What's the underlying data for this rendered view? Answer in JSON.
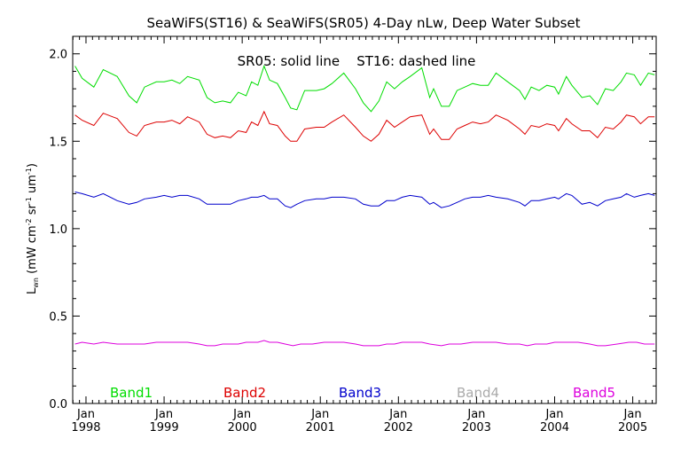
{
  "chart_data": {
    "type": "line",
    "title": "SeaWiFS(ST16) & SeaWiFS(SR05) 4-Day nLw, Deep Water Subset",
    "annotation": "SR05: solid line    ST16: dashed line",
    "ylabel": {
      "main": "L",
      "sub": "wn",
      "rest1": " (mW cm",
      "sup1": "-2",
      "rest2": " sr",
      "sup2": "-1",
      "rest3": " um",
      "sup3": "-1",
      "rest4": ")"
    },
    "ylim": [
      0.0,
      2.1
    ],
    "xlim": [
      1997.83,
      2005.3
    ],
    "y_ticks": [
      {
        "value": 0.0,
        "label": "0.0"
      },
      {
        "value": 0.5,
        "label": "0.5"
      },
      {
        "value": 1.0,
        "label": "1.0"
      },
      {
        "value": 1.5,
        "label": "1.5"
      },
      {
        "value": 2.0,
        "label": "2.0"
      }
    ],
    "x_ticks": [
      {
        "value": 1998.0,
        "month": "Jan",
        "year": "1998"
      },
      {
        "value": 1999.0,
        "month": "Jan",
        "year": "1999"
      },
      {
        "value": 2000.0,
        "month": "Jan",
        "year": "2000"
      },
      {
        "value": 2001.0,
        "month": "Jan",
        "year": "2001"
      },
      {
        "value": 2002.0,
        "month": "Jan",
        "year": "2002"
      },
      {
        "value": 2003.0,
        "month": "Jan",
        "year": "2003"
      },
      {
        "value": 2004.0,
        "month": "Jan",
        "year": "2004"
      },
      {
        "value": 2005.0,
        "month": "Jan",
        "year": "2005"
      }
    ],
    "legend": [
      {
        "name": "Band1",
        "color": "#00dd00"
      },
      {
        "name": "Band2",
        "color": "#dd0000"
      },
      {
        "name": "Band3",
        "color": "#0000cc"
      },
      {
        "name": "Band4",
        "color": "#aaaaaa"
      },
      {
        "name": "Band5",
        "color": "#dd00dd"
      }
    ],
    "legend_placement": "bottom inside plot",
    "grid": false,
    "series": [
      {
        "name": "Band1",
        "color": "#00dd00",
        "points": [
          [
            1997.86,
            1.93
          ],
          [
            1997.95,
            1.86
          ],
          [
            1998.1,
            1.81
          ],
          [
            1998.22,
            1.91
          ],
          [
            1998.4,
            1.87
          ],
          [
            1998.55,
            1.76
          ],
          [
            1998.65,
            1.72
          ],
          [
            1998.75,
            1.81
          ],
          [
            1998.9,
            1.84
          ],
          [
            1999.0,
            1.84
          ],
          [
            1999.1,
            1.85
          ],
          [
            1999.2,
            1.83
          ],
          [
            1999.3,
            1.87
          ],
          [
            1999.45,
            1.85
          ],
          [
            1999.55,
            1.75
          ],
          [
            1999.65,
            1.72
          ],
          [
            1999.75,
            1.73
          ],
          [
            1999.85,
            1.72
          ],
          [
            1999.95,
            1.78
          ],
          [
            2000.05,
            1.76
          ],
          [
            2000.12,
            1.84
          ],
          [
            2000.2,
            1.82
          ],
          [
            2000.28,
            1.93
          ],
          [
            2000.35,
            1.85
          ],
          [
            2000.45,
            1.83
          ],
          [
            2000.55,
            1.75
          ],
          [
            2000.62,
            1.69
          ],
          [
            2000.7,
            1.68
          ],
          [
            2000.8,
            1.79
          ],
          [
            2000.95,
            1.79
          ],
          [
            2001.05,
            1.8
          ],
          [
            2001.15,
            1.83
          ],
          [
            2001.3,
            1.89
          ],
          [
            2001.45,
            1.8
          ],
          [
            2001.55,
            1.72
          ],
          [
            2001.65,
            1.67
          ],
          [
            2001.75,
            1.73
          ],
          [
            2001.85,
            1.84
          ],
          [
            2001.95,
            1.8
          ],
          [
            2002.05,
            1.84
          ],
          [
            2002.15,
            1.87
          ],
          [
            2002.3,
            1.92
          ],
          [
            2002.4,
            1.75
          ],
          [
            2002.45,
            1.8
          ],
          [
            2002.55,
            1.7
          ],
          [
            2002.65,
            1.7
          ],
          [
            2002.75,
            1.79
          ],
          [
            2002.85,
            1.81
          ],
          [
            2002.95,
            1.83
          ],
          [
            2003.05,
            1.82
          ],
          [
            2003.15,
            1.82
          ],
          [
            2003.25,
            1.89
          ],
          [
            2003.4,
            1.84
          ],
          [
            2003.55,
            1.79
          ],
          [
            2003.62,
            1.74
          ],
          [
            2003.7,
            1.81
          ],
          [
            2003.8,
            1.79
          ],
          [
            2003.9,
            1.82
          ],
          [
            2004.0,
            1.81
          ],
          [
            2004.05,
            1.77
          ],
          [
            2004.15,
            1.87
          ],
          [
            2004.22,
            1.82
          ],
          [
            2004.35,
            1.75
          ],
          [
            2004.45,
            1.76
          ],
          [
            2004.55,
            1.71
          ],
          [
            2004.65,
            1.8
          ],
          [
            2004.75,
            1.79
          ],
          [
            2004.85,
            1.84
          ],
          [
            2004.92,
            1.89
          ],
          [
            2005.02,
            1.88
          ],
          [
            2005.1,
            1.82
          ],
          [
            2005.2,
            1.89
          ],
          [
            2005.28,
            1.88
          ]
        ]
      },
      {
        "name": "Band2",
        "color": "#dd0000",
        "points": [
          [
            1997.86,
            1.65
          ],
          [
            1997.95,
            1.62
          ],
          [
            1998.1,
            1.59
          ],
          [
            1998.22,
            1.66
          ],
          [
            1998.4,
            1.63
          ],
          [
            1998.55,
            1.55
          ],
          [
            1998.65,
            1.53
          ],
          [
            1998.75,
            1.59
          ],
          [
            1998.9,
            1.61
          ],
          [
            1999.0,
            1.61
          ],
          [
            1999.1,
            1.62
          ],
          [
            1999.2,
            1.6
          ],
          [
            1999.3,
            1.64
          ],
          [
            1999.45,
            1.61
          ],
          [
            1999.55,
            1.54
          ],
          [
            1999.65,
            1.52
          ],
          [
            1999.75,
            1.53
          ],
          [
            1999.85,
            1.52
          ],
          [
            1999.95,
            1.56
          ],
          [
            2000.05,
            1.55
          ],
          [
            2000.12,
            1.61
          ],
          [
            2000.2,
            1.59
          ],
          [
            2000.28,
            1.67
          ],
          [
            2000.35,
            1.6
          ],
          [
            2000.45,
            1.59
          ],
          [
            2000.55,
            1.53
          ],
          [
            2000.62,
            1.5
          ],
          [
            2000.7,
            1.5
          ],
          [
            2000.8,
            1.57
          ],
          [
            2000.95,
            1.58
          ],
          [
            2001.05,
            1.58
          ],
          [
            2001.15,
            1.61
          ],
          [
            2001.3,
            1.65
          ],
          [
            2001.45,
            1.58
          ],
          [
            2001.55,
            1.53
          ],
          [
            2001.65,
            1.5
          ],
          [
            2001.75,
            1.54
          ],
          [
            2001.85,
            1.62
          ],
          [
            2001.95,
            1.58
          ],
          [
            2002.05,
            1.61
          ],
          [
            2002.15,
            1.64
          ],
          [
            2002.3,
            1.65
          ],
          [
            2002.4,
            1.54
          ],
          [
            2002.45,
            1.57
          ],
          [
            2002.55,
            1.51
          ],
          [
            2002.65,
            1.51
          ],
          [
            2002.75,
            1.57
          ],
          [
            2002.85,
            1.59
          ],
          [
            2002.95,
            1.61
          ],
          [
            2003.05,
            1.6
          ],
          [
            2003.15,
            1.61
          ],
          [
            2003.25,
            1.65
          ],
          [
            2003.4,
            1.62
          ],
          [
            2003.55,
            1.57
          ],
          [
            2003.62,
            1.54
          ],
          [
            2003.7,
            1.59
          ],
          [
            2003.8,
            1.58
          ],
          [
            2003.9,
            1.6
          ],
          [
            2004.0,
            1.59
          ],
          [
            2004.05,
            1.56
          ],
          [
            2004.15,
            1.63
          ],
          [
            2004.22,
            1.6
          ],
          [
            2004.35,
            1.56
          ],
          [
            2004.45,
            1.56
          ],
          [
            2004.55,
            1.52
          ],
          [
            2004.65,
            1.58
          ],
          [
            2004.75,
            1.57
          ],
          [
            2004.85,
            1.61
          ],
          [
            2004.92,
            1.65
          ],
          [
            2005.02,
            1.64
          ],
          [
            2005.1,
            1.6
          ],
          [
            2005.2,
            1.64
          ],
          [
            2005.28,
            1.64
          ]
        ]
      },
      {
        "name": "Band3",
        "color": "#0000cc",
        "points": [
          [
            1997.86,
            1.21
          ],
          [
            1997.95,
            1.2
          ],
          [
            1998.1,
            1.18
          ],
          [
            1998.22,
            1.2
          ],
          [
            1998.4,
            1.16
          ],
          [
            1998.55,
            1.14
          ],
          [
            1998.65,
            1.15
          ],
          [
            1998.75,
            1.17
          ],
          [
            1998.9,
            1.18
          ],
          [
            1999.0,
            1.19
          ],
          [
            1999.1,
            1.18
          ],
          [
            1999.2,
            1.19
          ],
          [
            1999.3,
            1.19
          ],
          [
            1999.45,
            1.17
          ],
          [
            1999.55,
            1.14
          ],
          [
            1999.65,
            1.14
          ],
          [
            1999.75,
            1.14
          ],
          [
            1999.85,
            1.14
          ],
          [
            1999.95,
            1.16
          ],
          [
            2000.05,
            1.17
          ],
          [
            2000.12,
            1.18
          ],
          [
            2000.2,
            1.18
          ],
          [
            2000.28,
            1.19
          ],
          [
            2000.35,
            1.17
          ],
          [
            2000.45,
            1.17
          ],
          [
            2000.55,
            1.13
          ],
          [
            2000.62,
            1.12
          ],
          [
            2000.7,
            1.14
          ],
          [
            2000.8,
            1.16
          ],
          [
            2000.95,
            1.17
          ],
          [
            2001.05,
            1.17
          ],
          [
            2001.15,
            1.18
          ],
          [
            2001.3,
            1.18
          ],
          [
            2001.45,
            1.17
          ],
          [
            2001.55,
            1.14
          ],
          [
            2001.65,
            1.13
          ],
          [
            2001.75,
            1.13
          ],
          [
            2001.85,
            1.16
          ],
          [
            2001.95,
            1.16
          ],
          [
            2002.05,
            1.18
          ],
          [
            2002.15,
            1.19
          ],
          [
            2002.3,
            1.18
          ],
          [
            2002.4,
            1.14
          ],
          [
            2002.45,
            1.15
          ],
          [
            2002.55,
            1.12
          ],
          [
            2002.65,
            1.13
          ],
          [
            2002.75,
            1.15
          ],
          [
            2002.85,
            1.17
          ],
          [
            2002.95,
            1.18
          ],
          [
            2003.05,
            1.18
          ],
          [
            2003.15,
            1.19
          ],
          [
            2003.25,
            1.18
          ],
          [
            2003.4,
            1.17
          ],
          [
            2003.55,
            1.15
          ],
          [
            2003.62,
            1.13
          ],
          [
            2003.7,
            1.16
          ],
          [
            2003.8,
            1.16
          ],
          [
            2003.9,
            1.17
          ],
          [
            2004.0,
            1.18
          ],
          [
            2004.05,
            1.17
          ],
          [
            2004.15,
            1.2
          ],
          [
            2004.22,
            1.19
          ],
          [
            2004.35,
            1.14
          ],
          [
            2004.45,
            1.15
          ],
          [
            2004.55,
            1.13
          ],
          [
            2004.65,
            1.16
          ],
          [
            2004.75,
            1.17
          ],
          [
            2004.85,
            1.18
          ],
          [
            2004.92,
            1.2
          ],
          [
            2005.02,
            1.18
          ],
          [
            2005.1,
            1.19
          ],
          [
            2005.2,
            1.2
          ],
          [
            2005.28,
            1.19
          ]
        ]
      },
      {
        "name": "Band5",
        "color": "#dd00dd",
        "points": [
          [
            1997.86,
            0.34
          ],
          [
            1997.95,
            0.35
          ],
          [
            1998.1,
            0.34
          ],
          [
            1998.22,
            0.35
          ],
          [
            1998.4,
            0.34
          ],
          [
            1998.55,
            0.34
          ],
          [
            1998.75,
            0.34
          ],
          [
            1998.9,
            0.35
          ],
          [
            1999.0,
            0.35
          ],
          [
            1999.1,
            0.35
          ],
          [
            1999.2,
            0.35
          ],
          [
            1999.3,
            0.35
          ],
          [
            1999.45,
            0.34
          ],
          [
            1999.55,
            0.33
          ],
          [
            1999.65,
            0.33
          ],
          [
            1999.75,
            0.34
          ],
          [
            1999.85,
            0.34
          ],
          [
            1999.95,
            0.34
          ],
          [
            2000.05,
            0.35
          ],
          [
            2000.2,
            0.35
          ],
          [
            2000.28,
            0.36
          ],
          [
            2000.35,
            0.35
          ],
          [
            2000.45,
            0.35
          ],
          [
            2000.55,
            0.34
          ],
          [
            2000.65,
            0.33
          ],
          [
            2000.75,
            0.34
          ],
          [
            2000.9,
            0.34
          ],
          [
            2001.05,
            0.35
          ],
          [
            2001.15,
            0.35
          ],
          [
            2001.3,
            0.35
          ],
          [
            2001.45,
            0.34
          ],
          [
            2001.55,
            0.33
          ],
          [
            2001.65,
            0.33
          ],
          [
            2001.75,
            0.33
          ],
          [
            2001.85,
            0.34
          ],
          [
            2001.95,
            0.34
          ],
          [
            2002.05,
            0.35
          ],
          [
            2002.2,
            0.35
          ],
          [
            2002.3,
            0.35
          ],
          [
            2002.4,
            0.34
          ],
          [
            2002.55,
            0.33
          ],
          [
            2002.65,
            0.34
          ],
          [
            2002.8,
            0.34
          ],
          [
            2002.95,
            0.35
          ],
          [
            2003.1,
            0.35
          ],
          [
            2003.25,
            0.35
          ],
          [
            2003.4,
            0.34
          ],
          [
            2003.55,
            0.34
          ],
          [
            2003.65,
            0.33
          ],
          [
            2003.75,
            0.34
          ],
          [
            2003.9,
            0.34
          ],
          [
            2004.0,
            0.35
          ],
          [
            2004.15,
            0.35
          ],
          [
            2004.3,
            0.35
          ],
          [
            2004.45,
            0.34
          ],
          [
            2004.55,
            0.33
          ],
          [
            2004.65,
            0.33
          ],
          [
            2004.8,
            0.34
          ],
          [
            2004.95,
            0.35
          ],
          [
            2005.05,
            0.35
          ],
          [
            2005.15,
            0.34
          ],
          [
            2005.28,
            0.34
          ]
        ]
      }
    ]
  }
}
